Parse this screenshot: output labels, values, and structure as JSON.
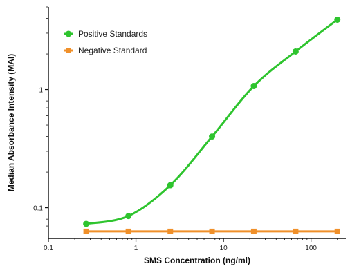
{
  "chart_data": {
    "type": "scatter",
    "xlabel": "SMS Concentration (ng/ml)",
    "ylabel": "Median Absorbance Intensity (MAI)",
    "x_scale": "log",
    "y_scale": "log",
    "xlim": [
      0.1,
      250
    ],
    "ylim": [
      0.055,
      5
    ],
    "x_ticks": [
      0.1,
      1,
      10,
      100
    ],
    "x_tick_labels": [
      "0.1",
      "1",
      "10",
      "100"
    ],
    "y_ticks": [
      0.1,
      1
    ],
    "y_tick_labels": [
      "0.1",
      "1"
    ],
    "grid": false,
    "legend_position": "top-left",
    "series": [
      {
        "name": "Positive Standards",
        "color": "#2ec42e",
        "marker": "circle",
        "x": [
          0.27,
          0.82,
          2.47,
          7.4,
          22.2,
          66.7,
          200
        ],
        "y": [
          0.073,
          0.085,
          0.155,
          0.4,
          1.07,
          2.1,
          3.9
        ],
        "fit_curve": true
      },
      {
        "name": "Negative Standard",
        "color": "#f0902a",
        "marker": "square",
        "x": [
          0.27,
          0.82,
          2.47,
          7.4,
          22.2,
          66.7,
          200
        ],
        "y": [
          0.063,
          0.063,
          0.063,
          0.063,
          0.063,
          0.063,
          0.063
        ],
        "connect_line": true
      }
    ]
  }
}
